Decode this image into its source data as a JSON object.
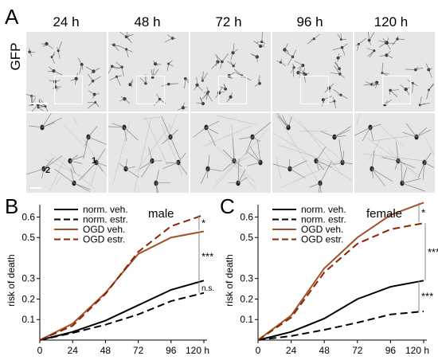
{
  "panel_a": {
    "letter": "A",
    "row_label": "GFP",
    "timepoints": [
      "24 h",
      "48 h",
      "72 h",
      "96 h",
      "120 h"
    ],
    "inset_markers": [
      "1",
      "2"
    ]
  },
  "chart_data": [
    {
      "panel": "B",
      "type": "line",
      "title": "male",
      "ylabel": "risk of death",
      "x": [
        0,
        24,
        48,
        72,
        96,
        120
      ],
      "x_ticks": [
        "0",
        "24",
        "48",
        "72",
        "96",
        "120 h"
      ],
      "y_ticks": [
        "0.1",
        "0.2",
        "0.3",
        "0.5",
        "0.6"
      ],
      "ylim": [
        0,
        0.66
      ],
      "series": [
        {
          "name": "norm. veh.",
          "color": "#000000",
          "dash": "solid",
          "values": [
            0.0,
            0.04,
            0.095,
            0.17,
            0.245,
            0.29
          ]
        },
        {
          "name": "norm. estr.",
          "color": "#000000",
          "dash": "dashed",
          "values": [
            0.0,
            0.035,
            0.075,
            0.125,
            0.19,
            0.23
          ]
        },
        {
          "name": "OGD veh.",
          "color": "#a0522d",
          "dash": "solid",
          "values": [
            0.0,
            0.08,
            0.23,
            0.42,
            0.5,
            0.53
          ]
        },
        {
          "name": "OGD estr.",
          "color": "#8b2500",
          "dash": "dashed",
          "values": [
            0.0,
            0.07,
            0.225,
            0.43,
            0.555,
            0.61
          ]
        }
      ],
      "significance": [
        {
          "label": "*",
          "between": [
            "OGD veh.",
            "OGD estr."
          ]
        },
        {
          "label": "***",
          "between": [
            "OGD veh.",
            "norm. veh."
          ]
        },
        {
          "label": "n.s.",
          "between": [
            "norm. veh.",
            "norm. estr."
          ]
        }
      ]
    },
    {
      "panel": "C",
      "type": "line",
      "title": "female",
      "ylabel": "risk of death",
      "x": [
        0,
        24,
        48,
        72,
        96,
        120
      ],
      "x_ticks": [
        "0",
        "24",
        "48",
        "72",
        "96",
        "120 h"
      ],
      "y_ticks": [
        "0.1",
        "0.2",
        "0.3",
        "0.5",
        "0.6"
      ],
      "ylim": [
        0,
        0.66
      ],
      "series": [
        {
          "name": "norm. veh.",
          "color": "#000000",
          "dash": "solid",
          "values": [
            0.0,
            0.04,
            0.105,
            0.2,
            0.26,
            0.29
          ]
        },
        {
          "name": "norm. estr.",
          "color": "#000000",
          "dash": "dashed",
          "values": [
            0.0,
            0.02,
            0.05,
            0.085,
            0.125,
            0.14
          ]
        },
        {
          "name": "OGD veh.",
          "color": "#a0522d",
          "dash": "solid",
          "values": [
            0.0,
            0.12,
            0.35,
            0.5,
            0.61,
            0.67
          ]
        },
        {
          "name": "OGD estr.",
          "color": "#8b2500",
          "dash": "dashed",
          "values": [
            0.0,
            0.11,
            0.33,
            0.47,
            0.54,
            0.57
          ]
        }
      ],
      "significance": [
        {
          "label": "*",
          "between": [
            "OGD veh.",
            "OGD estr."
          ]
        },
        {
          "label": "***",
          "between": [
            "OGD estr.",
            "norm. veh."
          ]
        },
        {
          "label": "***",
          "between": [
            "norm. veh.",
            "norm. estr."
          ]
        }
      ]
    }
  ]
}
